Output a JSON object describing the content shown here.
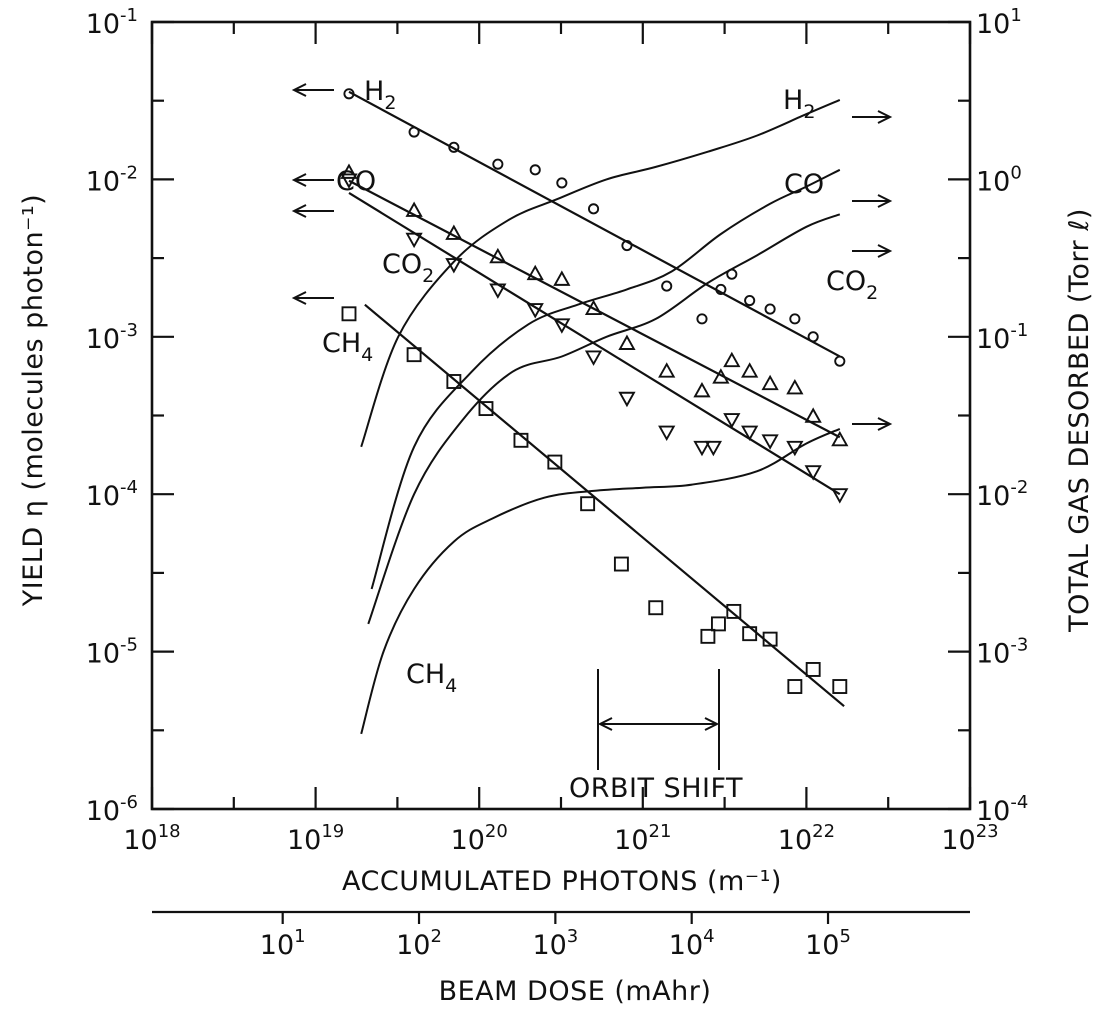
{
  "chart_data": {
    "type": "scatter",
    "xlabel": "ACCUMULATED PHOTONS (m⁻¹)",
    "ylabel": "YIELD η (molecules photon⁻¹)",
    "y2label": "TOTAL GAS DESORBED (Torr ℓ)",
    "x2label": "BEAM DOSE (mAhr)",
    "x_scale": "log",
    "y_scale": "log",
    "xlim": [
      1e+18,
      1e+23
    ],
    "ylim": [
      1e-06,
      0.1
    ],
    "y2lim": [
      0.0001,
      10
    ],
    "x2lim": [
      1.1,
      1100000.0
    ],
    "x_ticks": [
      {
        "base": "10",
        "exp": "18",
        "value": 1e+18
      },
      {
        "base": "10",
        "exp": "19",
        "value": 1e+19
      },
      {
        "base": "10",
        "exp": "20",
        "value": 1e+20
      },
      {
        "base": "10",
        "exp": "21",
        "value": 1e+21
      },
      {
        "base": "10",
        "exp": "22",
        "value": 1e+22
      },
      {
        "base": "10",
        "exp": "23",
        "value": 1e+23
      }
    ],
    "y_ticks": [
      {
        "base": "10",
        "exp": "-1",
        "value": 0.1
      },
      {
        "base": "10",
        "exp": "-2",
        "value": 0.01
      },
      {
        "base": "10",
        "exp": "-3",
        "value": 0.001
      },
      {
        "base": "10",
        "exp": "-4",
        "value": 0.0001
      },
      {
        "base": "10",
        "exp": "-5",
        "value": 1e-05
      },
      {
        "base": "10",
        "exp": "-6",
        "value": 1e-06
      }
    ],
    "y2_ticks": [
      {
        "base": "10",
        "exp": "1",
        "value": 10
      },
      {
        "base": "10",
        "exp": "0",
        "value": 1
      },
      {
        "base": "10",
        "exp": "-1",
        "value": 0.1
      },
      {
        "base": "10",
        "exp": "-2",
        "value": 0.01
      },
      {
        "base": "10",
        "exp": "-3",
        "value": 0.001
      },
      {
        "base": "10",
        "exp": "-4",
        "value": 0.0001
      }
    ],
    "x2_ticks": [
      {
        "base": "10",
        "exp": "1",
        "value": 10
      },
      {
        "base": "10",
        "exp": "2",
        "value": 100
      },
      {
        "base": "10",
        "exp": "3",
        "value": 1000
      },
      {
        "base": "10",
        "exp": "4",
        "value": 10000
      },
      {
        "base": "10",
        "exp": "5",
        "value": 100000
      }
    ],
    "yield_series": [
      {
        "name": "H₂",
        "marker": "circle",
        "points": [
          [
            1.6e+19,
            0.035
          ],
          [
            4e+19,
            0.02
          ],
          [
            7e+19,
            0.016
          ],
          [
            1.3e+20,
            0.0125
          ],
          [
            2.2e+20,
            0.0115
          ],
          [
            3.2e+20,
            0.0095
          ],
          [
            5e+20,
            0.0065
          ],
          [
            8e+20,
            0.0038
          ],
          [
            1.4e+21,
            0.0021
          ],
          [
            2.3e+21,
            0.0013
          ],
          [
            3e+21,
            0.002
          ],
          [
            3.5e+21,
            0.0025
          ],
          [
            4.5e+21,
            0.0017
          ],
          [
            6e+21,
            0.0015
          ],
          [
            8.5e+21,
            0.0013
          ],
          [
            1.1e+22,
            0.001
          ],
          [
            1.6e+22,
            0.0007
          ]
        ],
        "fit": [
          [
            1.6e+19,
            0.036
          ],
          [
            1.6e+22,
            0.00075
          ]
        ]
      },
      {
        "name": "CO",
        "marker": "triangle-up",
        "points": [
          [
            1.6e+19,
            0.011
          ],
          [
            4e+19,
            0.0063
          ],
          [
            7e+19,
            0.0045
          ],
          [
            1.3e+20,
            0.0032
          ],
          [
            2.2e+20,
            0.0025
          ],
          [
            3.2e+20,
            0.0023
          ],
          [
            5e+20,
            0.0015
          ],
          [
            8e+20,
            0.0009
          ],
          [
            1.4e+21,
            0.0006
          ],
          [
            2.3e+21,
            0.00045
          ],
          [
            3e+21,
            0.00055
          ],
          [
            3.5e+21,
            0.0007
          ],
          [
            4.5e+21,
            0.0006
          ],
          [
            6e+21,
            0.0005
          ],
          [
            8.5e+21,
            0.00047
          ],
          [
            1.1e+22,
            0.00031
          ],
          [
            1.6e+22,
            0.00022
          ]
        ],
        "fit": [
          [
            1.6e+19,
            0.0098
          ],
          [
            1.6e+22,
            0.00023
          ]
        ]
      },
      {
        "name": "CO₂",
        "marker": "triangle-down",
        "points": [
          [
            1.6e+19,
            0.01
          ],
          [
            4e+19,
            0.0042
          ],
          [
            7e+19,
            0.0029
          ],
          [
            1.3e+20,
            0.002
          ],
          [
            2.2e+20,
            0.0015
          ],
          [
            3.2e+20,
            0.0012
          ],
          [
            5e+20,
            0.00075
          ],
          [
            8e+20,
            0.00041
          ],
          [
            1.4e+21,
            0.00025
          ],
          [
            2.3e+21,
            0.0002
          ],
          [
            2.7e+21,
            0.0002
          ],
          [
            3.5e+21,
            0.0003
          ],
          [
            4.5e+21,
            0.00025
          ],
          [
            6e+21,
            0.00022
          ],
          [
            8.5e+21,
            0.0002
          ],
          [
            1.1e+22,
            0.00014
          ],
          [
            1.6e+22,
            0.0001
          ]
        ],
        "fit": [
          [
            1.6e+19,
            0.0082
          ],
          [
            1.6e+22,
            0.0001
          ]
        ]
      },
      {
        "name": "CH₄",
        "marker": "square",
        "points": [
          [
            1.6e+19,
            0.0014
          ],
          [
            4e+19,
            0.00077
          ],
          [
            7e+19,
            0.00052
          ],
          [
            1.1e+20,
            0.00035
          ],
          [
            1.8e+20,
            0.00022
          ],
          [
            2.9e+20,
            0.00016
          ],
          [
            4.6e+20,
            8.7e-05
          ],
          [
            7.4e+20,
            3.6e-05
          ],
          [
            1.2e+21,
            1.9e-05
          ],
          [
            2.5e+21,
            1.25e-05
          ],
          [
            2.9e+21,
            1.5e-05
          ],
          [
            3.6e+21,
            1.8e-05
          ],
          [
            4.5e+21,
            1.3e-05
          ],
          [
            6e+21,
            1.2e-05
          ],
          [
            8.5e+21,
            6e-06
          ],
          [
            1.1e+22,
            7.7e-06
          ],
          [
            1.6e+22,
            6e-06
          ]
        ],
        "fit": [
          [
            2e+19,
            0.0016
          ],
          [
            1.7e+22,
            4.5e-06
          ]
        ]
      }
    ],
    "total_gas_series": [
      {
        "name": "H₂",
        "points": [
          [
            1.9e+19,
            0.02
          ],
          [
            3.2e+19,
            0.1
          ],
          [
            7e+19,
            0.3
          ],
          [
            1.5e+20,
            0.55
          ],
          [
            3e+20,
            0.75
          ],
          [
            6e+20,
            1.0
          ],
          [
            1.2e+21,
            1.2
          ],
          [
            2.5e+21,
            1.5
          ],
          [
            5e+21,
            1.9
          ],
          [
            1e+22,
            2.6
          ],
          [
            1.6e+22,
            3.2
          ]
        ]
      },
      {
        "name": "CO",
        "points": [
          [
            2.2e+19,
            0.0025
          ],
          [
            4e+19,
            0.02
          ],
          [
            9e+19,
            0.06
          ],
          [
            2e+20,
            0.12
          ],
          [
            4e+20,
            0.16
          ],
          [
            8e+20,
            0.2
          ],
          [
            1.5e+21,
            0.26
          ],
          [
            3e+21,
            0.45
          ],
          [
            6e+21,
            0.7
          ],
          [
            1e+22,
            0.9
          ],
          [
            1.6e+22,
            1.15
          ]
        ]
      },
      {
        "name": "CO₂",
        "points": [
          [
            2.1e+19,
            0.0015
          ],
          [
            4e+19,
            0.01
          ],
          [
            8e+19,
            0.03
          ],
          [
            1.6e+20,
            0.06
          ],
          [
            3.2e+20,
            0.075
          ],
          [
            6e+20,
            0.1
          ],
          [
            1.2e+21,
            0.13
          ],
          [
            2.5e+21,
            0.22
          ],
          [
            5e+21,
            0.33
          ],
          [
            1e+22,
            0.5
          ],
          [
            1.6e+22,
            0.6
          ]
        ]
      },
      {
        "name": "CH₄",
        "points": [
          [
            1.9e+19,
            0.0003
          ],
          [
            2.6e+19,
            0.001
          ],
          [
            4e+19,
            0.0025
          ],
          [
            7e+19,
            0.005
          ],
          [
            1.2e+20,
            0.007
          ],
          [
            2.5e+20,
            0.0095
          ],
          [
            5e+20,
            0.0105
          ],
          [
            1e+21,
            0.011
          ],
          [
            2e+21,
            0.0115
          ],
          [
            5e+21,
            0.014
          ],
          [
            1e+22,
            0.021
          ],
          [
            1.6e+22,
            0.026
          ]
        ]
      }
    ],
    "annotations": {
      "orbit_shift": {
        "text": "ORBIT SHIFT",
        "x_range": [
          6e+20,
          3e+21
        ],
        "y": 9e-06
      }
    }
  }
}
